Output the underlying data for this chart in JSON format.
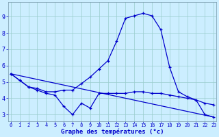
{
  "xlabel": "Graphe des températures (°c)",
  "bg_color": "#cceeff",
  "line_color": "#0000cc",
  "grid_color": "#99cccc",
  "x_ticks": [
    0,
    1,
    2,
    3,
    4,
    5,
    6,
    7,
    8,
    9,
    10,
    11,
    12,
    13,
    14,
    15,
    16,
    17,
    18,
    19,
    20,
    21,
    22,
    23
  ],
  "y_ticks": [
    3,
    4,
    5,
    6,
    7,
    8,
    9
  ],
  "ylim": [
    2.6,
    9.9
  ],
  "xlim": [
    -0.3,
    23.3
  ],
  "series_temp": {
    "x": [
      0,
      1,
      2,
      3,
      4,
      5,
      6,
      7,
      8,
      9,
      10,
      11,
      12,
      13,
      14,
      15,
      16,
      17,
      18,
      19,
      20,
      21,
      22,
      23
    ],
    "y": [
      5.5,
      5.1,
      4.7,
      4.6,
      4.4,
      4.4,
      4.5,
      4.5,
      4.9,
      5.3,
      5.8,
      6.3,
      7.5,
      8.9,
      9.05,
      9.2,
      9.05,
      8.2,
      5.9,
      4.4,
      4.1,
      3.9,
      3.7,
      3.6
    ]
  },
  "series_dew": {
    "x": [
      0,
      1,
      2,
      3,
      4,
      5,
      6,
      7,
      8,
      9,
      10,
      11,
      12,
      13,
      14,
      15,
      16,
      17,
      18,
      19,
      20,
      21,
      22,
      23
    ],
    "y": [
      5.5,
      5.1,
      4.7,
      4.5,
      4.3,
      4.2,
      3.5,
      3.0,
      3.7,
      3.4,
      4.3,
      4.3,
      4.3,
      4.3,
      4.4,
      4.4,
      4.3,
      4.3,
      4.2,
      4.1,
      4.0,
      3.9,
      3.0,
      2.85
    ]
  },
  "series_line": {
    "x": [
      0,
      23
    ],
    "y": [
      5.5,
      2.85
    ]
  }
}
